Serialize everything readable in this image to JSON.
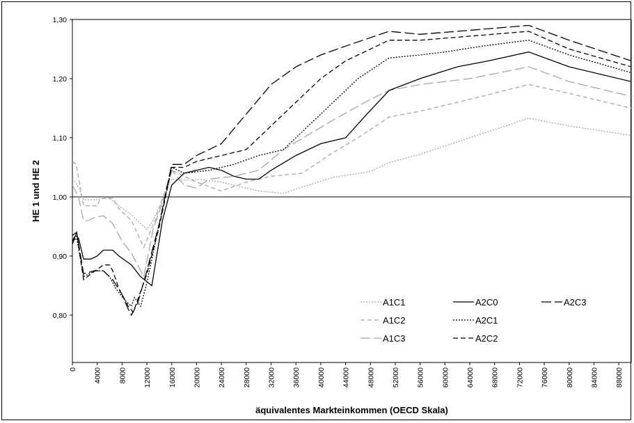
{
  "chart_data": {
    "type": "line",
    "xlabel": "äquivalentes Markteinkommen (OECD Skala)",
    "ylabel": "HE 1 und HE 2",
    "xlim": [
      0,
      90000
    ],
    "ylim": [
      0.72,
      1.3
    ],
    "x_ticks": [
      "0",
      "4000",
      "8000",
      "12000",
      "16000",
      "20000",
      "24000",
      "28000",
      "32000",
      "36000",
      "40000",
      "44000",
      "48000",
      "52000",
      "56000",
      "60000",
      "64000",
      "68000",
      "72000",
      "76000",
      "80000",
      "84000",
      "88000"
    ],
    "y_ticks": [
      "0,80",
      "0,90",
      "1,00",
      "1,10",
      "1,20",
      "1,30"
    ],
    "reference_line": 1.0,
    "legend_position": "bottom-right",
    "series": [
      {
        "name": "A1C1",
        "color": "#a6a6a6",
        "dash": "2,2",
        "points": [
          [
            0,
            1.03
          ],
          [
            800,
            1.02
          ],
          [
            1800,
            0.995
          ],
          [
            3500,
            0.995
          ],
          [
            5500,
            0.998
          ],
          [
            6200,
            0.996
          ],
          [
            7500,
            0.985
          ],
          [
            9500,
            0.97
          ],
          [
            12000,
            0.945
          ],
          [
            13000,
            0.96
          ],
          [
            16000,
            1.03
          ],
          [
            18000,
            1.028
          ],
          [
            20000,
            1.03
          ],
          [
            24000,
            1.025
          ],
          [
            28000,
            1.015
          ],
          [
            30000,
            1.01
          ],
          [
            34000,
            1.006
          ],
          [
            38000,
            1.02
          ],
          [
            42000,
            1.033
          ],
          [
            48000,
            1.043
          ],
          [
            51000,
            1.058
          ],
          [
            56000,
            1.072
          ],
          [
            64000,
            1.1
          ],
          [
            73500,
            1.133
          ],
          [
            80000,
            1.12
          ],
          [
            90000,
            1.104
          ]
        ]
      },
      {
        "name": "A1C2",
        "color": "#a6a6a6",
        "dash": "6,4",
        "points": [
          [
            0,
            1.06
          ],
          [
            600,
            1.055
          ],
          [
            1800,
            0.985
          ],
          [
            3000,
            0.985
          ],
          [
            4000,
            0.985
          ],
          [
            4500,
            0.997
          ],
          [
            6500,
            0.998
          ],
          [
            7500,
            0.98
          ],
          [
            9500,
            0.96
          ],
          [
            11500,
            0.915
          ],
          [
            13500,
            0.965
          ],
          [
            16000,
            1.045
          ],
          [
            18000,
            1.035
          ],
          [
            20000,
            1.025
          ],
          [
            24000,
            1.01
          ],
          [
            28000,
            1.025
          ],
          [
            32000,
            1.035
          ],
          [
            37000,
            1.04
          ],
          [
            42000,
            1.075
          ],
          [
            46000,
            1.1
          ],
          [
            51000,
            1.135
          ],
          [
            56000,
            1.145
          ],
          [
            64000,
            1.165
          ],
          [
            73500,
            1.19
          ],
          [
            80000,
            1.175
          ],
          [
            90000,
            1.15
          ]
        ]
      },
      {
        "name": "A1C3",
        "color": "#a6a6a6",
        "dash": "14,5",
        "points": [
          [
            0,
            1.02
          ],
          [
            1000,
            1.0
          ],
          [
            1800,
            0.96
          ],
          [
            2600,
            0.96
          ],
          [
            3500,
            0.965
          ],
          [
            5000,
            0.968
          ],
          [
            6500,
            0.955
          ],
          [
            8000,
            0.925
          ],
          [
            9500,
            0.905
          ],
          [
            11500,
            0.865
          ],
          [
            13000,
            0.945
          ],
          [
            15000,
            1.005
          ],
          [
            16000,
            1.045
          ],
          [
            18000,
            1.02
          ],
          [
            20000,
            1.015
          ],
          [
            22000,
            1.03
          ],
          [
            26000,
            1.035
          ],
          [
            30000,
            1.045
          ],
          [
            34000,
            1.08
          ],
          [
            38000,
            1.105
          ],
          [
            42000,
            1.13
          ],
          [
            48000,
            1.165
          ],
          [
            51000,
            1.18
          ],
          [
            56000,
            1.19
          ],
          [
            64000,
            1.2
          ],
          [
            73500,
            1.22
          ],
          [
            80000,
            1.195
          ],
          [
            90000,
            1.17
          ]
        ]
      },
      {
        "name": "A2C0",
        "color": "#000000",
        "dash": "",
        "points": [
          [
            0,
            0.92
          ],
          [
            500,
            0.935
          ],
          [
            1000,
            0.93
          ],
          [
            1800,
            0.895
          ],
          [
            3000,
            0.895
          ],
          [
            4000,
            0.9
          ],
          [
            5000,
            0.91
          ],
          [
            6000,
            0.91
          ],
          [
            6500,
            0.91
          ],
          [
            7500,
            0.9
          ],
          [
            9500,
            0.885
          ],
          [
            11000,
            0.865
          ],
          [
            12800,
            0.85
          ],
          [
            14500,
            0.96
          ],
          [
            16000,
            1.02
          ],
          [
            18000,
            1.04
          ],
          [
            20000,
            1.045
          ],
          [
            22000,
            1.05
          ],
          [
            24000,
            1.045
          ],
          [
            26000,
            1.035
          ],
          [
            28000,
            1.03
          ],
          [
            30000,
            1.03
          ],
          [
            32000,
            1.045
          ],
          [
            36000,
            1.07
          ],
          [
            40000,
            1.09
          ],
          [
            44000,
            1.1
          ],
          [
            47000,
            1.135
          ],
          [
            51000,
            1.18
          ],
          [
            56000,
            1.2
          ],
          [
            62000,
            1.22
          ],
          [
            67000,
            1.23
          ],
          [
            73500,
            1.245
          ],
          [
            80000,
            1.22
          ],
          [
            90000,
            1.195
          ]
        ]
      },
      {
        "name": "A2C1",
        "color": "#000000",
        "dash": "2,2",
        "points": [
          [
            0,
            0.925
          ],
          [
            700,
            0.93
          ],
          [
            1800,
            0.865
          ],
          [
            3500,
            0.875
          ],
          [
            5000,
            0.875
          ],
          [
            6000,
            0.865
          ],
          [
            7000,
            0.845
          ],
          [
            8500,
            0.825
          ],
          [
            9500,
            0.815
          ],
          [
            10000,
            0.83
          ],
          [
            11000,
            0.815
          ],
          [
            12000,
            0.855
          ],
          [
            13500,
            0.93
          ],
          [
            16000,
            1.05
          ],
          [
            18000,
            1.04
          ],
          [
            22000,
            1.045
          ],
          [
            26000,
            1.055
          ],
          [
            30000,
            1.07
          ],
          [
            34000,
            1.08
          ],
          [
            38000,
            1.12
          ],
          [
            42000,
            1.16
          ],
          [
            46000,
            1.2
          ],
          [
            51000,
            1.235
          ],
          [
            56000,
            1.24
          ],
          [
            60000,
            1.245
          ],
          [
            66000,
            1.255
          ],
          [
            73500,
            1.265
          ],
          [
            80000,
            1.24
          ],
          [
            90000,
            1.21
          ]
        ]
      },
      {
        "name": "A2C2",
        "color": "#000000",
        "dash": "7,4",
        "points": [
          [
            0,
            0.925
          ],
          [
            700,
            0.94
          ],
          [
            1800,
            0.86
          ],
          [
            3000,
            0.87
          ],
          [
            5000,
            0.885
          ],
          [
            6000,
            0.885
          ],
          [
            6500,
            0.875
          ],
          [
            7500,
            0.845
          ],
          [
            9000,
            0.815
          ],
          [
            9800,
            0.805
          ],
          [
            11000,
            0.84
          ],
          [
            12000,
            0.87
          ],
          [
            14000,
            0.95
          ],
          [
            16000,
            1.05
          ],
          [
            18000,
            1.05
          ],
          [
            20000,
            1.06
          ],
          [
            24000,
            1.07
          ],
          [
            28000,
            1.08
          ],
          [
            32000,
            1.12
          ],
          [
            36000,
            1.16
          ],
          [
            40000,
            1.2
          ],
          [
            44000,
            1.23
          ],
          [
            51000,
            1.265
          ],
          [
            56000,
            1.265
          ],
          [
            62000,
            1.27
          ],
          [
            73500,
            1.28
          ],
          [
            80000,
            1.25
          ],
          [
            90000,
            1.22
          ]
        ]
      },
      {
        "name": "A2C3",
        "color": "#000000",
        "dash": "14,5",
        "points": [
          [
            0,
            0.935
          ],
          [
            700,
            0.94
          ],
          [
            1800,
            0.87
          ],
          [
            3500,
            0.875
          ],
          [
            5000,
            0.875
          ],
          [
            6500,
            0.86
          ],
          [
            8000,
            0.835
          ],
          [
            9000,
            0.81
          ],
          [
            9500,
            0.8
          ],
          [
            10500,
            0.82
          ],
          [
            12000,
            0.875
          ],
          [
            14000,
            0.955
          ],
          [
            16000,
            1.055
          ],
          [
            18000,
            1.055
          ],
          [
            20000,
            1.07
          ],
          [
            24000,
            1.09
          ],
          [
            28000,
            1.14
          ],
          [
            32000,
            1.19
          ],
          [
            36000,
            1.22
          ],
          [
            40000,
            1.24
          ],
          [
            44000,
            1.255
          ],
          [
            51000,
            1.28
          ],
          [
            56000,
            1.275
          ],
          [
            62000,
            1.28
          ],
          [
            73500,
            1.29
          ],
          [
            80000,
            1.265
          ],
          [
            90000,
            1.23
          ]
        ]
      }
    ],
    "legend_layout": [
      [
        "A1C1",
        "A2C0",
        "A2C3"
      ],
      [
        "A1C2",
        "A2C1"
      ],
      [
        "A1C3",
        "A2C2"
      ]
    ]
  }
}
